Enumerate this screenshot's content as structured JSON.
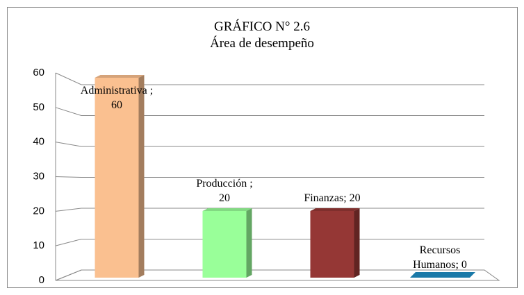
{
  "chart_data": {
    "type": "bar3d",
    "title": "GRÁFICO N° 2.6",
    "subtitle": "Área de desempeño",
    "values": [
      60,
      20,
      20,
      0
    ],
    "value_labels": [
      "Administrativa ; 60",
      "Producción ; 20",
      "Finanzas; 20",
      "Recursos Humanos; 0"
    ],
    "colors": [
      "#fac090",
      "#99ff99",
      "#953735",
      "#1f8ec6"
    ],
    "ylim": [
      0,
      60
    ],
    "yticks": [
      0,
      10,
      20,
      30,
      40,
      50,
      60
    ],
    "grid": true
  }
}
